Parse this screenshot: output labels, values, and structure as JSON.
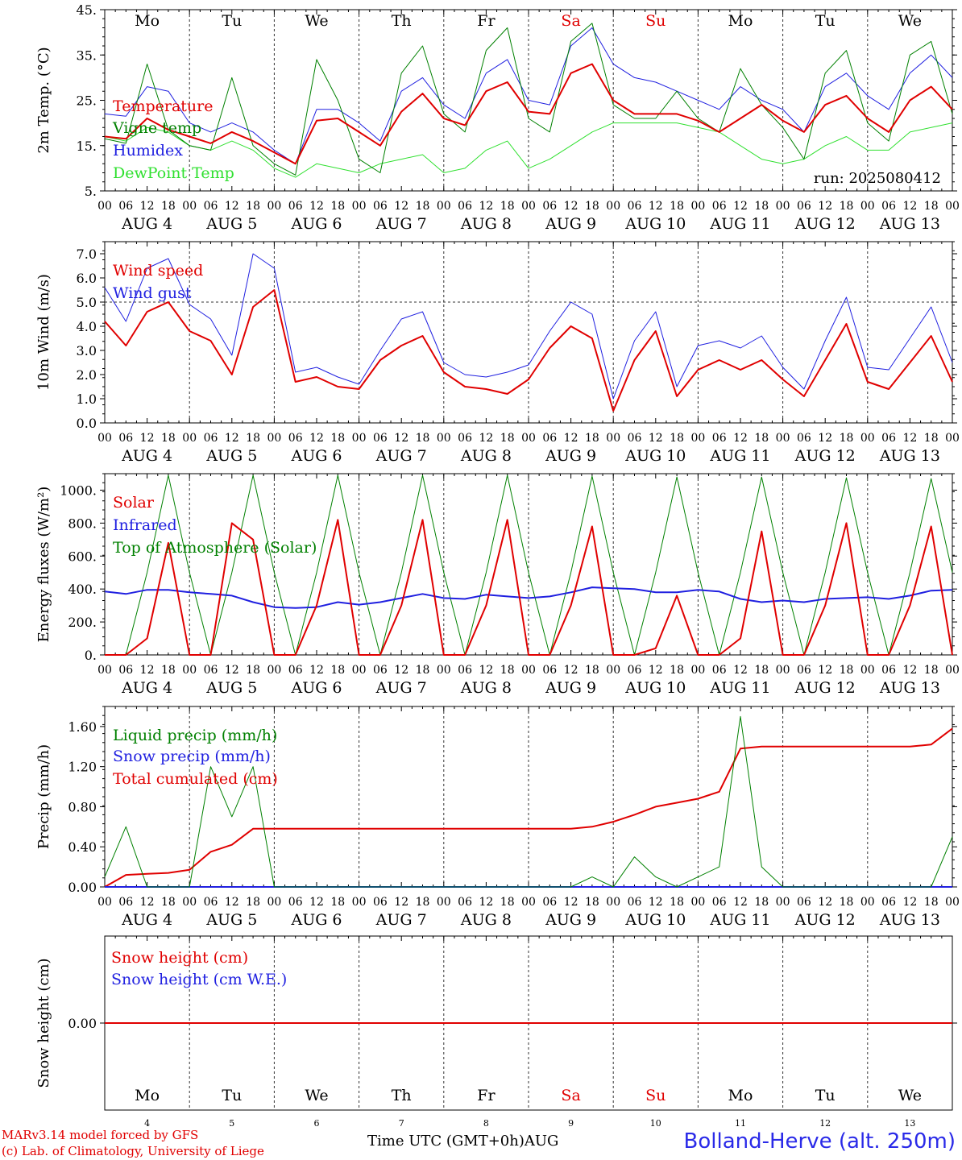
{
  "days": {
    "weekdays": [
      "Mo",
      "Tu",
      "We",
      "Th",
      "Fr",
      "Sa",
      "Su",
      "Mo",
      "Tu",
      "We"
    ],
    "weekend_flags": [
      false,
      false,
      false,
      false,
      false,
      true,
      true,
      false,
      false,
      false
    ],
    "dates": [
      "AUG  4",
      "AUG  5",
      "AUG  6",
      "AUG  7",
      "AUG  8",
      "AUG  9",
      "AUG 10",
      "AUG 11",
      "AUG 12",
      "AUG 13"
    ],
    "day_numbers": [
      "4",
      "5",
      "6",
      "7",
      "8",
      "9",
      "10",
      "11",
      "12",
      "13"
    ],
    "hour_labels": [
      "00",
      "06",
      "12",
      "18"
    ],
    "final_hour_label": "00"
  },
  "colors": {
    "red": "#e00000",
    "green": "#008000",
    "blue": "#2020e0",
    "lightgreen": "#30e030",
    "weekend": "#e00000"
  },
  "chart_data": [
    {
      "type": "line",
      "panel": "temperature",
      "ylabel": "2m Temp. (°C)",
      "ylim": [
        5,
        45
      ],
      "yticks": [
        "45.",
        "35.",
        "25.",
        "15.",
        "5."
      ],
      "run_label": "run: 2025080412",
      "x_unit": "hours since Aug 4 00 UTC, 6-hourly",
      "series": [
        {
          "name": "Temperature",
          "color": "#e00000",
          "width": 2,
          "values": [
            17,
            16.5,
            21,
            18.5,
            17,
            15.5,
            18,
            16,
            13.5,
            11,
            20.5,
            21,
            18,
            15,
            22.5,
            26.5,
            21,
            19.5,
            27,
            29,
            22.5,
            22,
            31,
            33,
            25,
            22,
            22,
            22,
            20.5,
            18,
            21,
            24,
            20.5,
            18,
            24,
            26,
            21,
            18,
            25,
            28,
            23
          ]
        },
        {
          "name": "Vigne temp",
          "color": "#008000",
          "width": 1,
          "values": [
            16.5,
            15.5,
            33,
            18.5,
            15,
            14,
            30,
            15,
            11,
            8.5,
            34,
            25,
            12,
            9,
            31,
            37,
            22,
            18,
            36,
            41,
            21,
            18,
            38,
            42,
            24,
            21,
            21,
            27,
            21,
            18,
            32,
            24,
            19,
            12,
            31,
            36,
            20,
            16,
            35,
            38,
            22
          ]
        },
        {
          "name": "Humidex",
          "color": "#2020e0",
          "width": 1,
          "values": [
            22,
            21.5,
            28,
            27,
            20,
            18,
            20,
            18,
            14,
            11,
            23,
            23,
            20,
            16,
            27,
            30,
            24,
            21,
            31,
            34,
            25,
            24,
            37,
            41,
            33,
            30,
            29,
            27,
            25,
            23,
            28,
            25,
            23,
            18,
            28,
            31,
            26,
            23,
            31,
            35,
            30
          ]
        },
        {
          "name": "DewPoint Temp",
          "color": "#30e030",
          "width": 1,
          "values": [
            17,
            16,
            19,
            18,
            15,
            14,
            16,
            14,
            10,
            8,
            11,
            10,
            9,
            11,
            12,
            13,
            9,
            10,
            14,
            16,
            10,
            12,
            15,
            18,
            20,
            20,
            20,
            20,
            19,
            18,
            15,
            12,
            11,
            12,
            15,
            17,
            14,
            14,
            18,
            19,
            20
          ]
        }
      ]
    },
    {
      "type": "line",
      "panel": "wind",
      "ylabel": "10m Wind (m/s)",
      "ylim": [
        0,
        7.5
      ],
      "yticks": [
        "7.0",
        "6.0",
        "5.0",
        "4.0",
        "3.0",
        "2.0",
        "1.0",
        "0.0"
      ],
      "reference_line": 5.0,
      "series": [
        {
          "name": "Wind speed",
          "color": "#e00000",
          "width": 2,
          "values": [
            4.2,
            3.2,
            4.6,
            5,
            3.8,
            3.4,
            2,
            4.8,
            5.5,
            1.7,
            1.9,
            1.5,
            1.4,
            2.6,
            3.2,
            3.6,
            2.1,
            1.5,
            1.4,
            1.2,
            1.8,
            3.1,
            4,
            3.5,
            0.5,
            2.6,
            3.8,
            1.1,
            2.2,
            2.6,
            2.2,
            2.6,
            1.8,
            1.1,
            2.6,
            4.1,
            1.7,
            1.4,
            2.5,
            3.6,
            1.7
          ]
        },
        {
          "name": "Wind gust",
          "color": "#2020e0",
          "width": 1,
          "values": [
            5.6,
            4.2,
            6.4,
            6.8,
            4.9,
            4.3,
            2.8,
            7,
            6.4,
            2.1,
            2.3,
            1.9,
            1.6,
            3,
            4.3,
            4.6,
            2.5,
            2,
            1.9,
            2.1,
            2.4,
            3.8,
            5,
            4.5,
            1,
            3.4,
            4.6,
            1.5,
            3.2,
            3.4,
            3.1,
            3.6,
            2.3,
            1.4,
            3.4,
            5.2,
            2.3,
            2.2,
            3.5,
            4.8,
            2.5
          ]
        }
      ]
    },
    {
      "type": "line",
      "panel": "energy",
      "ylabel": "Energy fluxes (W/m²)",
      "ylim": [
        0,
        1100
      ],
      "yticks": [
        "1000.",
        "800.",
        "600.",
        "400.",
        "200.",
        "0."
      ],
      "series": [
        {
          "name": "Solar",
          "color": "#e00000",
          "width": 2,
          "values": [
            0,
            0,
            100,
            680,
            0,
            0,
            800,
            700,
            0,
            0,
            300,
            820,
            0,
            0,
            300,
            820,
            0,
            0,
            300,
            820,
            0,
            0,
            300,
            780,
            0,
            0,
            40,
            360,
            0,
            0,
            100,
            750,
            0,
            0,
            300,
            800,
            0,
            0,
            300,
            780,
            0
          ]
        },
        {
          "name": "Infrared",
          "color": "#2020e0",
          "width": 2,
          "values": [
            385,
            370,
            395,
            395,
            380,
            370,
            360,
            320,
            290,
            285,
            290,
            320,
            305,
            320,
            345,
            370,
            345,
            340,
            365,
            355,
            345,
            355,
            380,
            410,
            405,
            400,
            380,
            380,
            395,
            385,
            340,
            320,
            330,
            320,
            340,
            345,
            350,
            340,
            360,
            390,
            395
          ]
        },
        {
          "name": "Top of Atmosphere (Solar)",
          "color": "#008000",
          "width": 1,
          "values": [
            0,
            0,
            500,
            1090,
            500,
            0,
            500,
            1090,
            500,
            0,
            500,
            1090,
            500,
            0,
            500,
            1090,
            500,
            0,
            500,
            1090,
            500,
            0,
            500,
            1085,
            500,
            0,
            500,
            1080,
            500,
            0,
            500,
            1080,
            500,
            0,
            500,
            1075,
            500,
            0,
            500,
            1070,
            500
          ]
        }
      ]
    },
    {
      "type": "line",
      "panel": "precip",
      "ylabel": "Precip (mm/h)",
      "ylim": [
        0,
        1.8
      ],
      "yticks": [
        "1.60",
        "1.20",
        "0.80",
        "0.40",
        "0.00"
      ],
      "series": [
        {
          "name": "Liquid precip (mm/h)",
          "color": "#008000",
          "width": 1,
          "values": [
            0.1,
            0.6,
            0,
            0,
            0,
            1.2,
            0.7,
            1.2,
            0,
            0,
            0,
            0,
            0,
            0,
            0,
            0,
            0,
            0,
            0,
            0,
            0,
            0,
            0,
            0.1,
            0,
            0.3,
            0.1,
            0,
            0.1,
            0.2,
            1.7,
            0.2,
            0,
            0,
            0,
            0,
            0,
            0,
            0,
            0,
            0.5
          ]
        },
        {
          "name": "Snow precip (mm/h)",
          "color": "#2020e0",
          "width": 2,
          "values": [
            0,
            0,
            0,
            0,
            0,
            0,
            0,
            0,
            0,
            0,
            0,
            0,
            0,
            0,
            0,
            0,
            0,
            0,
            0,
            0,
            0,
            0,
            0,
            0,
            0,
            0,
            0,
            0,
            0,
            0,
            0,
            0,
            0,
            0,
            0,
            0,
            0,
            0,
            0,
            0,
            0
          ]
        },
        {
          "name": "Total cumulated (cm)",
          "color": "#e00000",
          "width": 2,
          "values": [
            0,
            0.12,
            0.13,
            0.14,
            0.17,
            0.35,
            0.42,
            0.58,
            0.58,
            0.58,
            0.58,
            0.58,
            0.58,
            0.58,
            0.58,
            0.58,
            0.58,
            0.58,
            0.58,
            0.58,
            0.58,
            0.58,
            0.58,
            0.6,
            0.65,
            0.72,
            0.8,
            0.84,
            0.88,
            0.95,
            1.38,
            1.4,
            1.4,
            1.4,
            1.4,
            1.4,
            1.4,
            1.4,
            1.4,
            1.42,
            1.58
          ]
        }
      ]
    },
    {
      "type": "line",
      "panel": "snow",
      "ylabel": "Snow height (cm)",
      "ylim": [
        -1,
        1
      ],
      "yticks": [
        "0.00"
      ],
      "series": [
        {
          "name": "Snow height (cm)",
          "color": "#e00000",
          "width": 2,
          "values": [
            0,
            0
          ]
        },
        {
          "name": "Snow height (cm W.E.)",
          "color": "#2020e0",
          "width": 1,
          "values": []
        }
      ]
    }
  ],
  "footer": {
    "credit_line1": "MARv3.14 model forced by GFS",
    "credit_line2": "(c) Lab. of Climatology, University of Liege",
    "axis_title": "Time UTC (GMT+0h)AUG",
    "station": "Bolland-Herve (alt. 250m)"
  }
}
